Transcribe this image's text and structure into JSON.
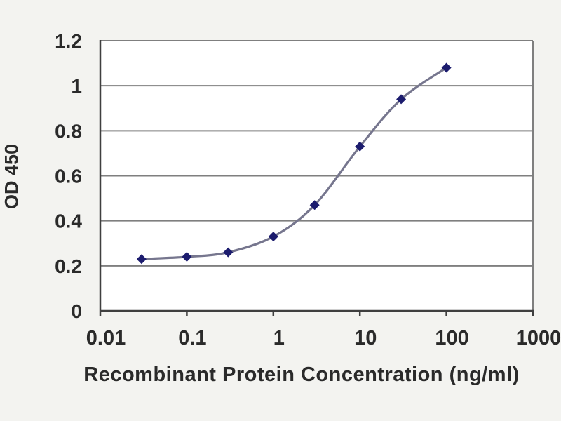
{
  "chart_data": {
    "type": "line",
    "title": "",
    "xlabel": "Recombinant Protein Concentration (ng/ml)",
    "ylabel": "OD 450",
    "x_scale": "log",
    "xlim": [
      0.01,
      1000
    ],
    "ylim": [
      0,
      1.2
    ],
    "x_ticks": [
      0.01,
      0.1,
      1,
      10,
      100,
      1000
    ],
    "x_tick_labels": [
      "0.01",
      "0.1",
      "1",
      "10",
      "100",
      "1000"
    ],
    "y_ticks": [
      0,
      0.2,
      0.4,
      0.6,
      0.8,
      1,
      1.2
    ],
    "y_tick_labels": [
      "0",
      "0.2",
      "0.4",
      "0.6",
      "0.8",
      "1",
      "1.2"
    ],
    "grid": "horizontal",
    "legend": "none",
    "series": [
      {
        "name": "OD 450",
        "marker": "diamond",
        "x": [
          0.03,
          0.1,
          0.3,
          1,
          3,
          10,
          30,
          100
        ],
        "y": [
          0.23,
          0.24,
          0.26,
          0.33,
          0.47,
          0.73,
          0.94,
          1.08
        ]
      }
    ],
    "colors": {
      "page_bg": "#f3f3f0",
      "plot_bg": "#ffffff",
      "grid": "#7f7f7f",
      "axis": "#3f3f3f",
      "line": "#76768e",
      "marker": "#1c1c6e",
      "text": "#2a2a2a"
    }
  }
}
